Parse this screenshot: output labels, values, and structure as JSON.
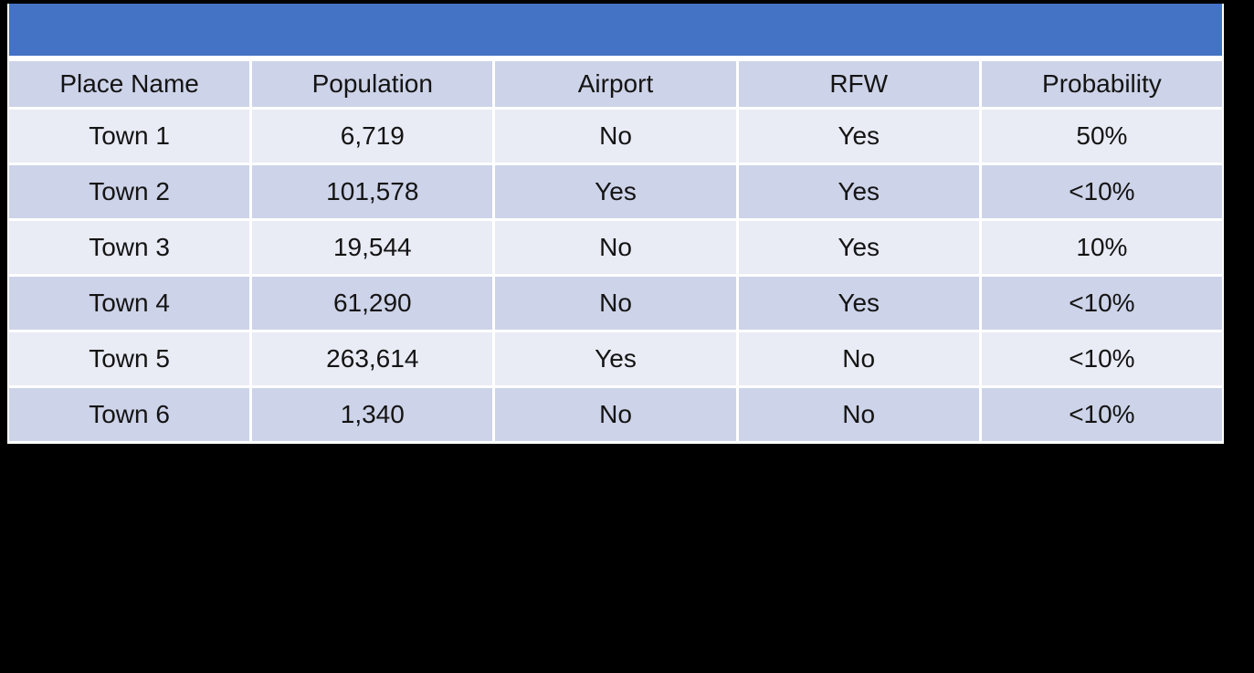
{
  "slide": {
    "background_color": "#000000"
  },
  "title_bar": {
    "text": "",
    "color": "#4472C4"
  },
  "colors": {
    "accent_blue": "#4472C4",
    "band_dark": "#CDD3E8",
    "band_light": "#E9EBF5",
    "gridline": "#FFFFFF",
    "text": "#141414"
  },
  "chart_data": {
    "type": "table",
    "title": "",
    "columns": [
      "Place Name",
      "Population",
      "Airport",
      "RFW",
      "Probability"
    ],
    "rows": [
      [
        "Town 1",
        "6,719",
        "No",
        "Yes",
        "50%"
      ],
      [
        "Town 2",
        "101,578",
        "Yes",
        "Yes",
        "<10%"
      ],
      [
        "Town 3",
        "19,544",
        "No",
        "Yes",
        "10%"
      ],
      [
        "Town 4",
        "61,290",
        "No",
        "Yes",
        "<10%"
      ],
      [
        "Town 5",
        "263,614",
        "Yes",
        "No",
        "<10%"
      ],
      [
        "Town 6",
        "1,340",
        "No",
        "No",
        "<10%"
      ]
    ]
  }
}
